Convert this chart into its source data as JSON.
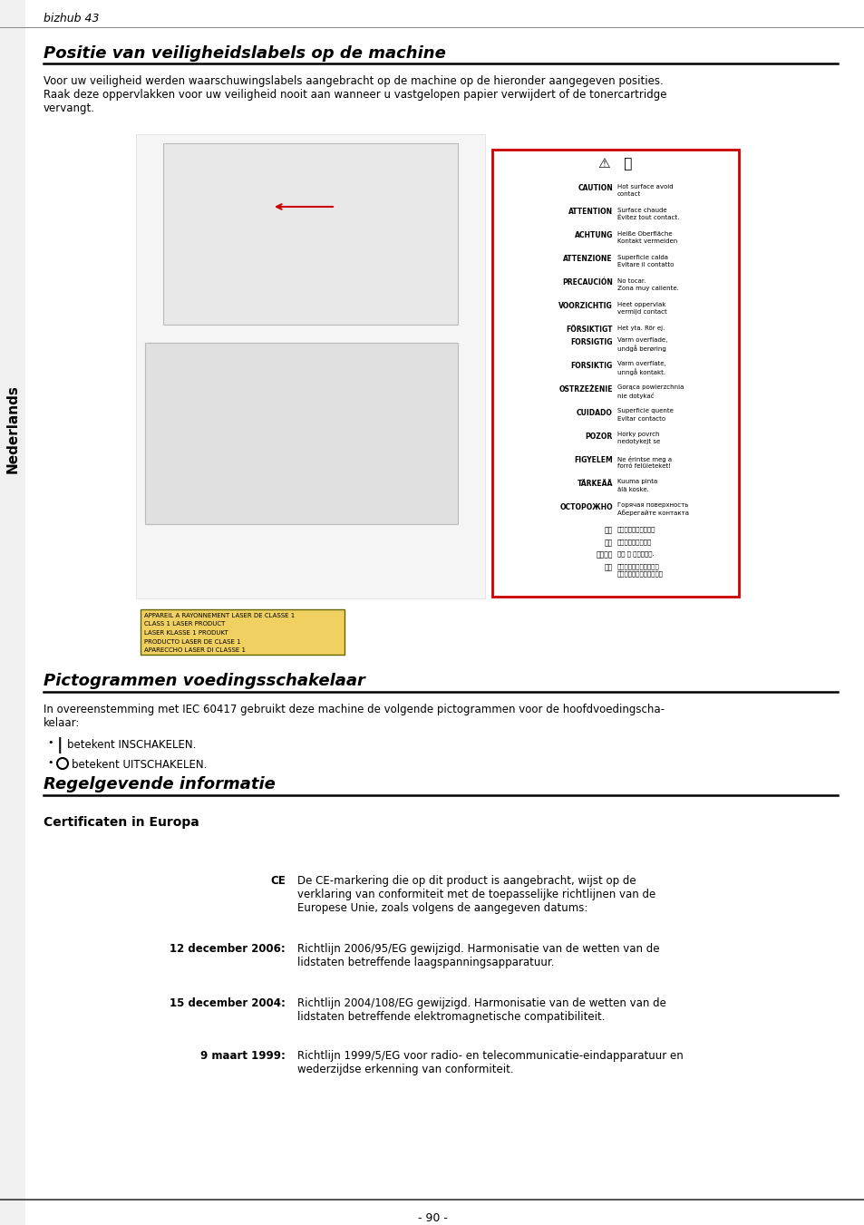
{
  "page_header": "bizhub 43",
  "sidebar_text": "Nederlands",
  "section1_title": "Positie van veiligheidslabels op de machine",
  "section1_body_l1": "Voor uw veiligheid werden waarschuwingslabels aangebracht op de machine op de hieronder aangegeven posities.",
  "section1_body_l2": "Raak deze oppervlakken voor uw veiligheid nooit aan wanneer u vastgelopen papier verwijdert of de tonercartridge",
  "section1_body_l3": "vervangt.",
  "section2_title": "Pictogrammen voedingsschakelaar",
  "section2_body_l1": "In overeenstemming met IEC 60417 gebruikt deze machine de volgende pictogrammen voor de hoofdvoedingscha-",
  "section2_body_l2": "kelaar:",
  "bullet1_sym": "|",
  "bullet1_text": "betekent INSCHAKELEN.",
  "bullet2_sym": "O",
  "bullet2_text": "betekent UITSCHAKELEN.",
  "section3_title": "Regelgevende informatie",
  "section4_title": "Certificaten in Europa",
  "ce_label": "CE",
  "ce_text_l1": "De CE-markering die op dit product is aangebracht, wijst op de",
  "ce_text_l2": "verklaring van conformiteit met de toepasselijke richtlijnen van de",
  "ce_text_l3": "Europese Unie, zoals volgens de aangegeven datums:",
  "row1_label": "12 december 2006:",
  "row1_text_l1": "Richtlijn 2006/95/EG gewijzigd. Harmonisatie van de wetten van de",
  "row1_text_l2": "lidstaten betreffende laagspanningsapparatuur.",
  "row2_label": "15 december 2004:",
  "row2_text_l1": "Richtlijn 2004/108/EG gewijzigd. Harmonisatie van de wetten van de",
  "row2_text_l2": "lidstaten betreffende elektromagnetische compatibiliteit.",
  "row3_label": "9 maart 1999:",
  "row3_text_l1": "Richtlijn 1999/5/EG voor radio- en telecommunicatie-eindapparatuur en",
  "row3_text_l2": "wederzijdse erkenning van conformiteit.",
  "footer": "- 90 -",
  "warn_rows": [
    [
      "CAUTION",
      "Hot surface avoid\ncontact"
    ],
    [
      "ATTENTION",
      "Surface chaude\nÉvitez tout contact."
    ],
    [
      "ACHTUNG",
      "Heiße Oberfläche\nKontakt vermeiden"
    ],
    [
      "ATTENZIONE",
      "Superficie calda\nEvitare il contatto"
    ],
    [
      "PRECAUCIÓN",
      "No tocar.\nZona muy caliente."
    ],
    [
      "VOORZICHTIG",
      "Heet oppervlak\nvermijd contact"
    ],
    [
      "FÖRSIKTIGT",
      "Het yta. Rör ej."
    ],
    [
      "FORSIGTIG",
      "Varm overflade,\nundgå berøring"
    ],
    [
      "FORSIKTIG",
      "Varm overflate,\nunngå kontakt."
    ],
    [
      "OSTRZEŻENIE",
      "Gorąca powierzchnia\nnie dotykać"
    ],
    [
      "CUIDADO",
      "Superficie quente\nEvitar contacto"
    ],
    [
      "POZOR",
      "Horky povrch\nnedotykejt se"
    ],
    [
      "FIGYELEM",
      "Ne érintse meg a\nforró felületeket!"
    ],
    [
      "TÄRKEÄÄ",
      "Kuuma pinta\nälä koske."
    ],
    [
      "OCTOPOЖHO",
      "Горячая поверхность\nАберегайте контакта"
    ],
    [
      "注意",
      "表面高温，请勿接触。"
    ],
    [
      "注意",
      "表面高温请勿接触。"
    ],
    [
      "고온주의",
      "이용 시 주의하세요."
    ],
    [
      "注意",
      "表面が熱くなっています\nので触らないでください。"
    ]
  ],
  "laser_lines": [
    "APPAREIL A RAYONNEMENT LASER DE CLASSE 1",
    "CLASS 1 LASER PRODUCT",
    "LASER KLASSE 1 PRODUKT",
    "PRODUCTO LASER DE CLASE 1",
    "APARECCHO LASER DI CLASSE 1"
  ]
}
